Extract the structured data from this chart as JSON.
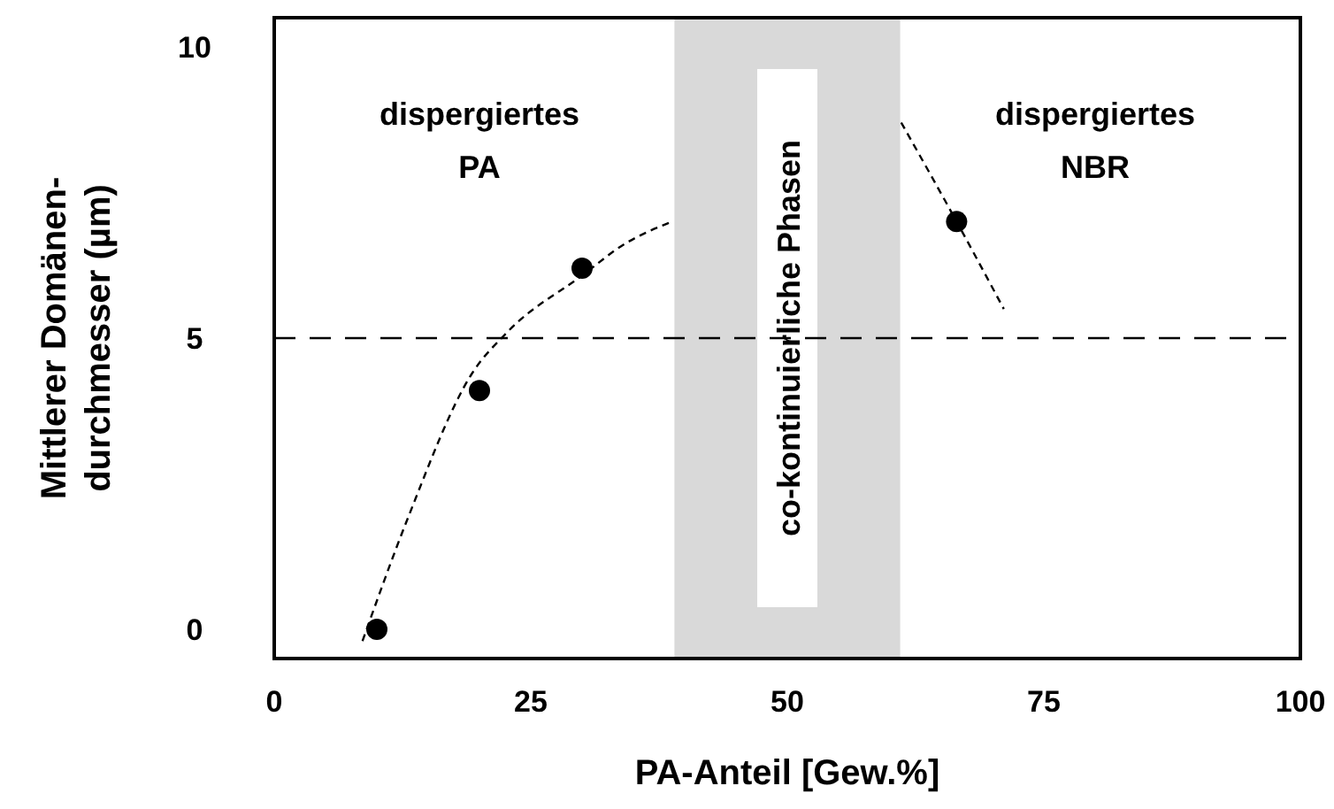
{
  "chart_data": {
    "type": "scatter",
    "xlabel": "PA-Anteil  [Gew.%]",
    "ylabel": "Mittlerer Domänen-\ndurchmesser   (µm)",
    "xlim": [
      0,
      100
    ],
    "xticks": [
      0,
      25,
      50,
      75,
      100
    ],
    "ylim": [
      -0.5,
      10.5
    ],
    "yticks": [
      0,
      5,
      10
    ],
    "grid": false,
    "marker": "circle",
    "series": [
      {
        "color": "#000000",
        "x": [
          10,
          20,
          30,
          66.5
        ],
        "values": [
          0,
          4.1,
          6.2,
          7.0
        ]
      },
      {
        "type": "line",
        "color": "#000000",
        "line_style": "dashed",
        "marker": "none",
        "x": [
          8.6,
          13,
          19.3,
          22.7,
          30.2,
          34,
          38.8
        ],
        "values": [
          -0.2,
          1.9,
          4.4,
          5.1,
          6.1,
          6.6,
          7.0
        ]
      },
      {
        "type": "line",
        "color": "#000000",
        "line_style": "dashed",
        "marker": "none",
        "x": [
          61.1,
          66.5,
          71.1
        ],
        "values": [
          8.7,
          7.0,
          5.5
        ]
      }
    ],
    "ref_lines": [
      {
        "axis": "y",
        "value": 5,
        "color": "#000000",
        "line_style": "dashed"
      }
    ],
    "bands": [
      {
        "axis": "x",
        "from": 39,
        "to": 61,
        "label": "co-kontinuierliche Phasen",
        "color": "#d9d9d9"
      }
    ],
    "annotations": [
      "dispergiertes\nPA",
      "dispergiertes\nNBR"
    ]
  }
}
